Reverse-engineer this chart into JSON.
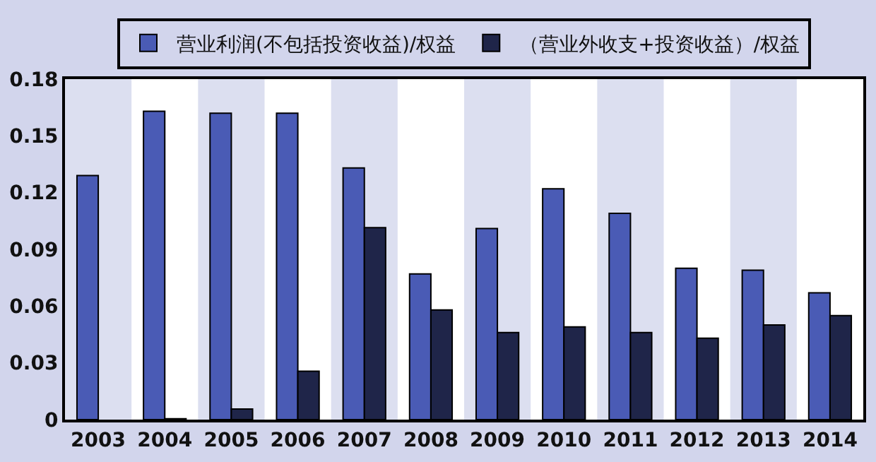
{
  "chart_data": {
    "type": "bar",
    "categories": [
      "2003",
      "2004",
      "2005",
      "2006",
      "2007",
      "2008",
      "2009",
      "2010",
      "2011",
      "2012",
      "2013",
      "2014"
    ],
    "series": [
      {
        "name": "营业利润(不包括投资收益)/权益",
        "color": "#4a5bb5",
        "values": [
          0.129,
          0.163,
          0.162,
          0.162,
          0.133,
          0.077,
          0.101,
          0.122,
          0.109,
          0.08,
          0.079,
          0.067
        ]
      },
      {
        "name": "（营业外收支+投资收益）/权益",
        "color": "#1f2549",
        "values": [
          null,
          0.0005,
          0.0056,
          0.0256,
          0.1015,
          0.058,
          0.046,
          0.049,
          0.046,
          0.043,
          0.05,
          0.055
        ]
      }
    ],
    "ylim": [
      0,
      0.18
    ],
    "yticks": [
      0,
      0.03,
      0.06,
      0.09,
      0.12,
      0.15,
      0.18
    ],
    "grid": false,
    "legend": "top"
  }
}
